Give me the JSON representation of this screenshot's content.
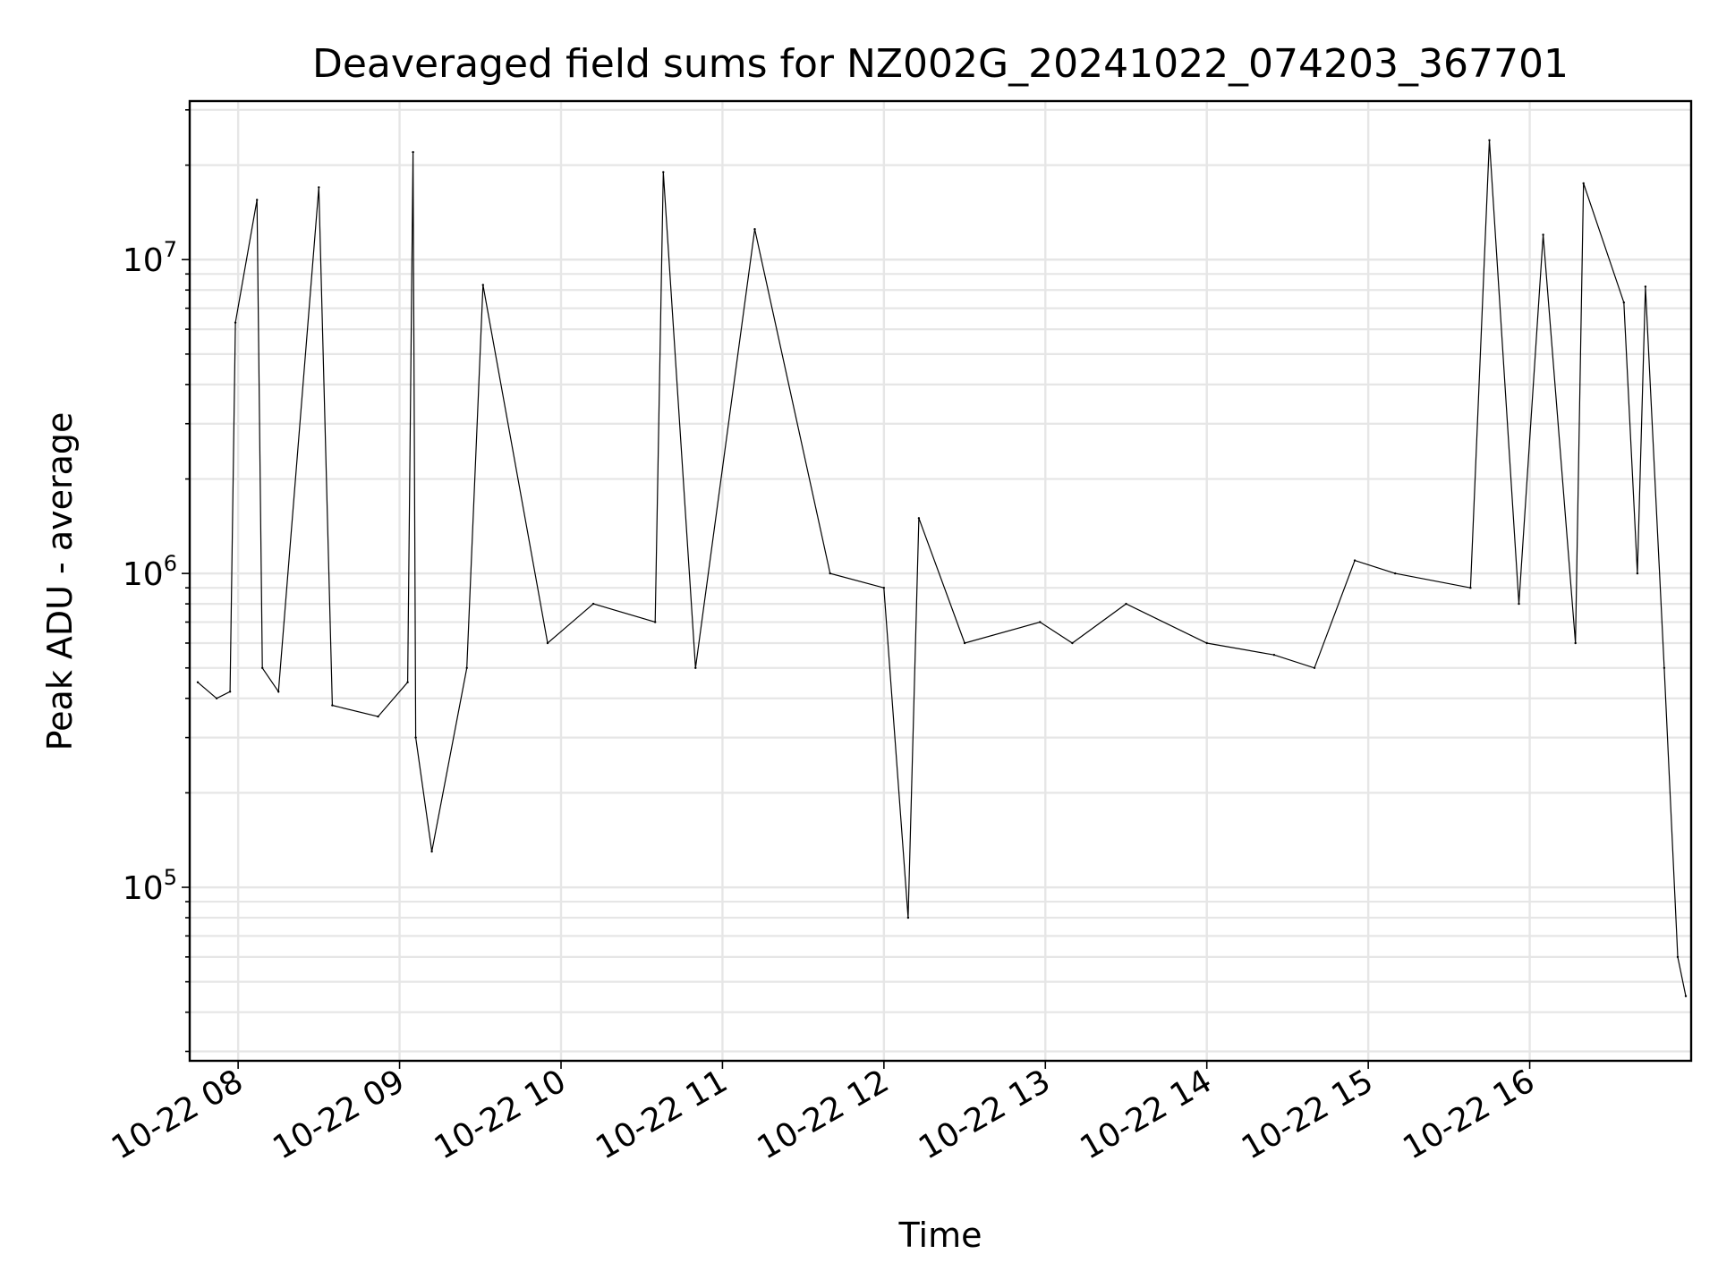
{
  "chart_data": {
    "type": "line",
    "title": "Deaveraged field sums for NZ002G_20241022_074203_367701",
    "xlabel": "Time",
    "ylabel": "Peak ADU - average",
    "x_scale": "time",
    "y_scale": "log",
    "xlim": [
      "2024-10-22 07:42",
      "2024-10-22 17:00"
    ],
    "ylim": [
      28000,
      32000000
    ],
    "x_ticks": [
      "2024-10-22 08:00",
      "2024-10-22 09:00",
      "2024-10-22 10:00",
      "2024-10-22 11:00",
      "2024-10-22 12:00",
      "2024-10-22 13:00",
      "2024-10-22 14:00",
      "2024-10-22 15:00",
      "2024-10-22 16:00"
    ],
    "x_tick_labels": [
      "10-22 08",
      "10-22 09",
      "10-22 10",
      "10-22 11",
      "10-22 12",
      "10-22 13",
      "10-22 14",
      "10-22 15",
      "10-22 16"
    ],
    "y_ticks": [
      {
        "value": 100000,
        "base": "10",
        "exp": "5"
      },
      {
        "value": 1000000,
        "base": "10",
        "exp": "6"
      },
      {
        "value": 10000000,
        "base": "10",
        "exp": "7"
      }
    ],
    "grid": true,
    "series": [
      {
        "color": "#000000",
        "x": [
          "2024-10-22 07:45",
          "2024-10-22 07:52",
          "2024-10-22 07:57",
          "2024-10-22 07:59",
          "2024-10-22 08:07",
          "2024-10-22 08:09",
          "2024-10-22 08:15",
          "2024-10-22 08:30",
          "2024-10-22 08:35",
          "2024-10-22 08:52",
          "2024-10-22 09:03",
          "2024-10-22 09:05",
          "2024-10-22 09:06",
          "2024-10-22 09:12",
          "2024-10-22 09:25",
          "2024-10-22 09:31",
          "2024-10-22 09:55",
          "2024-10-22 10:12",
          "2024-10-22 10:35",
          "2024-10-22 10:38",
          "2024-10-22 10:50",
          "2024-10-22 11:12",
          "2024-10-22 11:40",
          "2024-10-22 12:00",
          "2024-10-22 12:09",
          "2024-10-22 12:13",
          "2024-10-22 12:30",
          "2024-10-22 12:58",
          "2024-10-22 13:10",
          "2024-10-22 13:30",
          "2024-10-22 14:00",
          "2024-10-22 14:25",
          "2024-10-22 14:40",
          "2024-10-22 14:55",
          "2024-10-22 15:10",
          "2024-10-22 15:38",
          "2024-10-22 15:45",
          "2024-10-22 15:56",
          "2024-10-22 16:05",
          "2024-10-22 16:17",
          "2024-10-22 16:20",
          "2024-10-22 16:35",
          "2024-10-22 16:40",
          "2024-10-22 16:43",
          "2024-10-22 16:50",
          "2024-10-22 16:55",
          "2024-10-22 16:58"
        ],
        "y": [
          450000,
          400000,
          420000,
          6300000,
          15500000,
          500000,
          420000,
          17000000,
          380000,
          350000,
          450000,
          22000000,
          300000,
          130000,
          500000,
          8300000,
          600000,
          800000,
          700000,
          19000000,
          500000,
          12500000,
          1000000,
          900000,
          80000,
          1500000,
          600000,
          700000,
          600000,
          800000,
          600000,
          550000,
          500000,
          1100000,
          1000000,
          900000,
          24000000,
          800000,
          12000000,
          600000,
          17500000,
          7300000,
          1000000,
          8200000,
          500000,
          60000,
          45000
        ]
      }
    ]
  }
}
